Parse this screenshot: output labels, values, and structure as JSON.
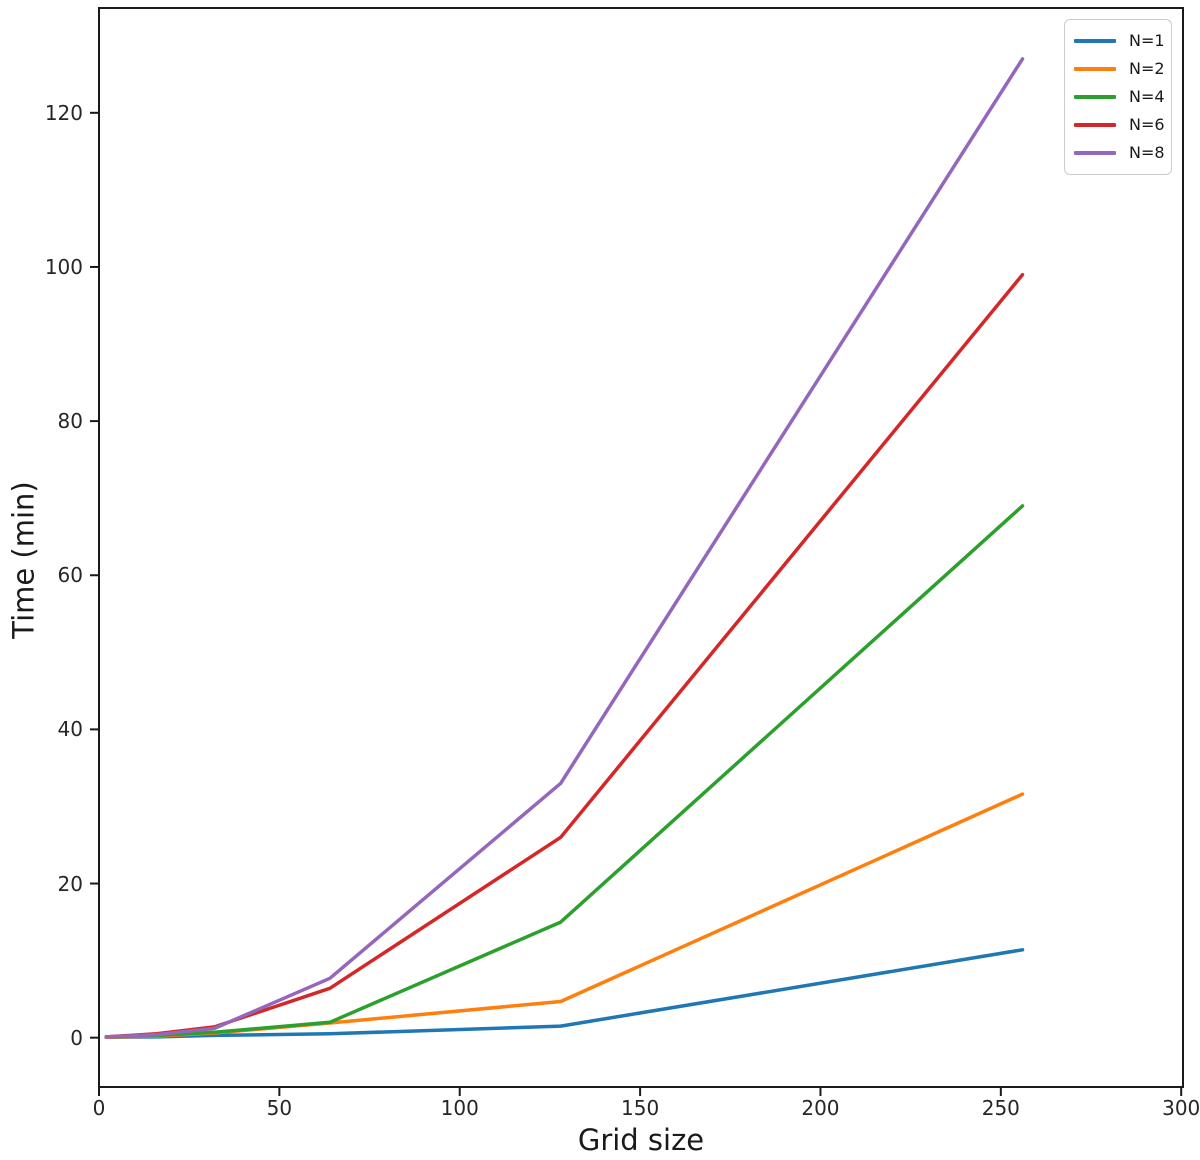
{
  "chart_data": {
    "type": "line",
    "title": "",
    "xlabel": "Grid size",
    "ylabel": "Time (min)",
    "x": [
      2,
      16,
      32,
      64,
      128,
      256
    ],
    "series": [
      {
        "name": "N=1",
        "color": "#1f77b4",
        "values": [
          0.05,
          0.1,
          0.3,
          0.5,
          1.5,
          11.4
        ]
      },
      {
        "name": "N=2",
        "color": "#ff7f0e",
        "values": [
          0.05,
          0.2,
          0.6,
          1.9,
          4.7,
          31.6
        ]
      },
      {
        "name": "N=4",
        "color": "#2ca02c",
        "values": [
          0.1,
          0.3,
          0.7,
          2.0,
          15.0,
          69.0
        ]
      },
      {
        "name": "N=6",
        "color": "#d62728",
        "values": [
          0.1,
          0.5,
          1.4,
          6.4,
          26.0,
          99.0
        ]
      },
      {
        "name": "N=8",
        "color": "#9467bd",
        "values": [
          0.1,
          0.4,
          1.2,
          7.7,
          33.0,
          127.0
        ]
      }
    ],
    "xticks": [
      "0",
      "50",
      "100",
      "150",
      "200",
      "250",
      "300"
    ],
    "xtick_values": [
      0,
      50,
      100,
      150,
      200,
      250,
      300
    ],
    "yticks": [
      "0",
      "20",
      "40",
      "60",
      "80",
      "100",
      "120"
    ],
    "ytick_values": [
      0,
      20,
      40,
      60,
      80,
      100,
      120
    ],
    "xlim": [
      0,
      300.5
    ],
    "ylim": [
      -6.4,
      133.6
    ],
    "grid": false,
    "legend_position": "upper right",
    "axis_color": "#1a1a1a"
  }
}
